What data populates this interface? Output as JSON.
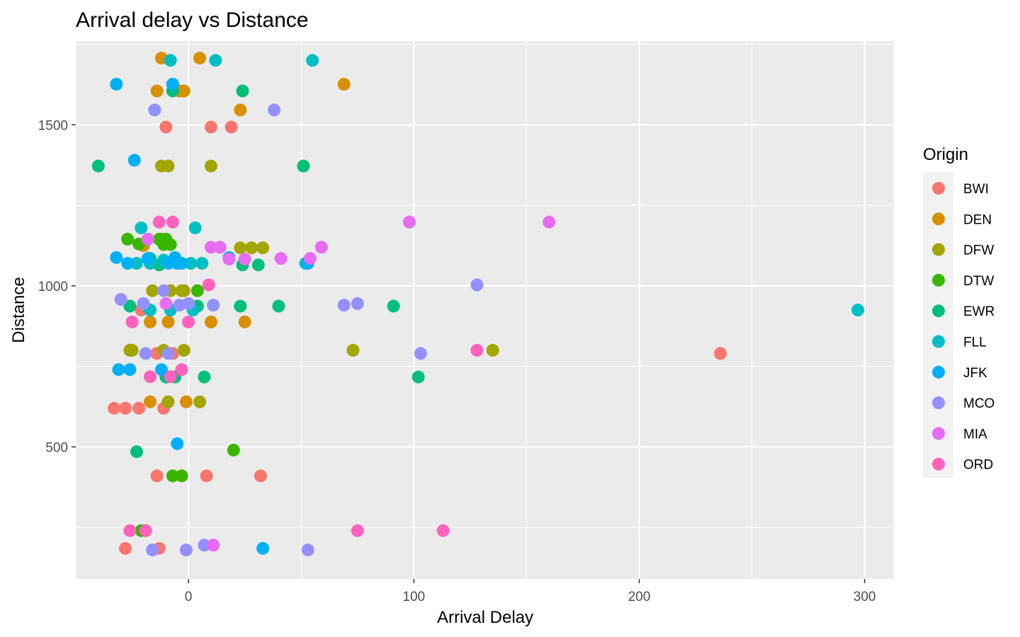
{
  "chart_data": {
    "type": "scatter",
    "title": "Arrival delay vs Distance",
    "xlabel": "Arrival Delay",
    "ylabel": "Distance",
    "xlim": [
      -50,
      313
    ],
    "ylim": [
      90,
      1760
    ],
    "x_ticks": [
      0,
      100,
      200,
      300
    ],
    "y_ticks": [
      500,
      1000,
      1500
    ],
    "grid": true,
    "legend": {
      "title": "Origin",
      "placement": "right"
    },
    "series": [
      {
        "name": "BWI",
        "color": "#F8766D",
        "points": [
          [
            -10,
            1493
          ],
          [
            10,
            1493
          ],
          [
            19,
            1493
          ],
          [
            -21,
            925
          ],
          [
            -7,
            790
          ],
          [
            236,
            790
          ],
          [
            -14,
            790
          ],
          [
            -33,
            620
          ],
          [
            -28,
            620
          ],
          [
            -22,
            620
          ],
          [
            -11,
            620
          ],
          [
            -14,
            410
          ],
          [
            8,
            410
          ],
          [
            32,
            410
          ],
          [
            -28,
            185
          ],
          [
            -13,
            185
          ]
        ]
      },
      {
        "name": "DEN",
        "color": "#D89000",
        "points": [
          [
            -12,
            1707
          ],
          [
            5,
            1707
          ],
          [
            69,
            1626
          ],
          [
            -7,
            1626
          ],
          [
            -14,
            1605
          ],
          [
            -4,
            1605
          ],
          [
            -2,
            1605
          ],
          [
            23,
            1546
          ],
          [
            -10,
            1140
          ],
          [
            -20,
            1125
          ],
          [
            -17,
            888
          ],
          [
            -9,
            888
          ],
          [
            10,
            888
          ],
          [
            25,
            888
          ],
          [
            -17,
            640
          ],
          [
            -1,
            640
          ]
        ]
      },
      {
        "name": "DFW",
        "color": "#A3A500",
        "points": [
          [
            -12,
            1372
          ],
          [
            -9,
            1372
          ],
          [
            10,
            1372
          ],
          [
            -12,
            1145
          ],
          [
            23,
            1118
          ],
          [
            28,
            1118
          ],
          [
            33,
            1118
          ],
          [
            -16,
            985
          ],
          [
            -8,
            985
          ],
          [
            -3,
            985
          ],
          [
            -2,
            985
          ],
          [
            -26,
            800
          ],
          [
            -25,
            800
          ],
          [
            -11,
            800
          ],
          [
            -2,
            800
          ],
          [
            73,
            800
          ],
          [
            135,
            800
          ],
          [
            -9,
            640
          ],
          [
            5,
            640
          ]
        ]
      },
      {
        "name": "DTW",
        "color": "#39B600",
        "points": [
          [
            -27,
            1145
          ],
          [
            -22,
            1130
          ],
          [
            -13,
            1145
          ],
          [
            -10,
            1145
          ],
          [
            -11,
            1128
          ],
          [
            -8,
            1128
          ],
          [
            4,
            985
          ],
          [
            -10,
            717
          ],
          [
            -7,
            410
          ],
          [
            -3,
            410
          ],
          [
            20,
            490
          ],
          [
            -21,
            240
          ],
          [
            -19,
            240
          ]
        ]
      },
      {
        "name": "EWR",
        "color": "#00BF7D",
        "points": [
          [
            -40,
            1372
          ],
          [
            51,
            1372
          ],
          [
            24,
            1605
          ],
          [
            -7,
            1605
          ],
          [
            -17,
            1085
          ],
          [
            -13,
            1065
          ],
          [
            24,
            1065
          ],
          [
            31,
            1065
          ],
          [
            -26,
            937
          ],
          [
            4,
            937
          ],
          [
            23,
            937
          ],
          [
            40,
            937
          ],
          [
            91,
            937
          ],
          [
            -10,
            717
          ],
          [
            -6,
            717
          ],
          [
            7,
            717
          ],
          [
            102,
            717
          ],
          [
            -23,
            485
          ]
        ]
      },
      {
        "name": "FLL",
        "color": "#00BFC4",
        "points": [
          [
            -8,
            1700
          ],
          [
            12,
            1700
          ],
          [
            55,
            1700
          ],
          [
            -21,
            1180
          ],
          [
            3,
            1180
          ],
          [
            -17,
            1070
          ],
          [
            -23,
            1070
          ],
          [
            -11,
            1080
          ],
          [
            6,
            1070
          ],
          [
            1,
            1070
          ],
          [
            52,
            1070
          ],
          [
            -8,
            925
          ],
          [
            2,
            925
          ],
          [
            -17,
            925
          ],
          [
            297,
            925
          ]
        ]
      },
      {
        "name": "JFK",
        "color": "#00B0F6",
        "points": [
          [
            -32,
            1626
          ],
          [
            -24,
            1390
          ],
          [
            -7,
            1626
          ],
          [
            -32,
            1088
          ],
          [
            -27,
            1070
          ],
          [
            -18,
            1085
          ],
          [
            -9,
            1070
          ],
          [
            -6,
            1088
          ],
          [
            -5,
            1070
          ],
          [
            -3,
            1070
          ],
          [
            18,
            1088
          ],
          [
            53,
            1070
          ],
          [
            -31,
            740
          ],
          [
            -26,
            740
          ],
          [
            -12,
            740
          ],
          [
            -5,
            510
          ],
          [
            33,
            185
          ]
        ]
      },
      {
        "name": "MCO",
        "color": "#9590FF",
        "points": [
          [
            -15,
            1546
          ],
          [
            38,
            1546
          ],
          [
            128,
            1003
          ],
          [
            -30,
            958
          ],
          [
            -20,
            945
          ],
          [
            -4,
            940
          ],
          [
            0,
            945
          ],
          [
            11,
            940
          ],
          [
            69,
            940
          ],
          [
            75,
            945
          ],
          [
            -11,
            985
          ],
          [
            -19,
            790
          ],
          [
            103,
            790
          ],
          [
            -9,
            790
          ],
          [
            -16,
            180
          ],
          [
            -1,
            180
          ],
          [
            7,
            195
          ],
          [
            53,
            180
          ]
        ]
      },
      {
        "name": "MIA",
        "color": "#E76BF3",
        "points": [
          [
            98,
            1198
          ],
          [
            160,
            1198
          ],
          [
            -18,
            1145
          ],
          [
            10,
            1120
          ],
          [
            14,
            1120
          ],
          [
            59,
            1120
          ],
          [
            18,
            1083
          ],
          [
            25,
            1083
          ],
          [
            41,
            1085
          ],
          [
            54,
            1085
          ],
          [
            -10,
            945
          ],
          [
            11,
            195
          ]
        ]
      },
      {
        "name": "ORD",
        "color": "#FF62BC",
        "points": [
          [
            -13,
            1198
          ],
          [
            -7,
            1198
          ],
          [
            9,
            1003
          ],
          [
            -25,
            888
          ],
          [
            0,
            888
          ],
          [
            128,
            800
          ],
          [
            -3,
            740
          ],
          [
            -17,
            718
          ],
          [
            -8,
            718
          ],
          [
            -26,
            240
          ],
          [
            -19,
            240
          ],
          [
            75,
            240
          ],
          [
            113,
            240
          ]
        ]
      }
    ]
  }
}
